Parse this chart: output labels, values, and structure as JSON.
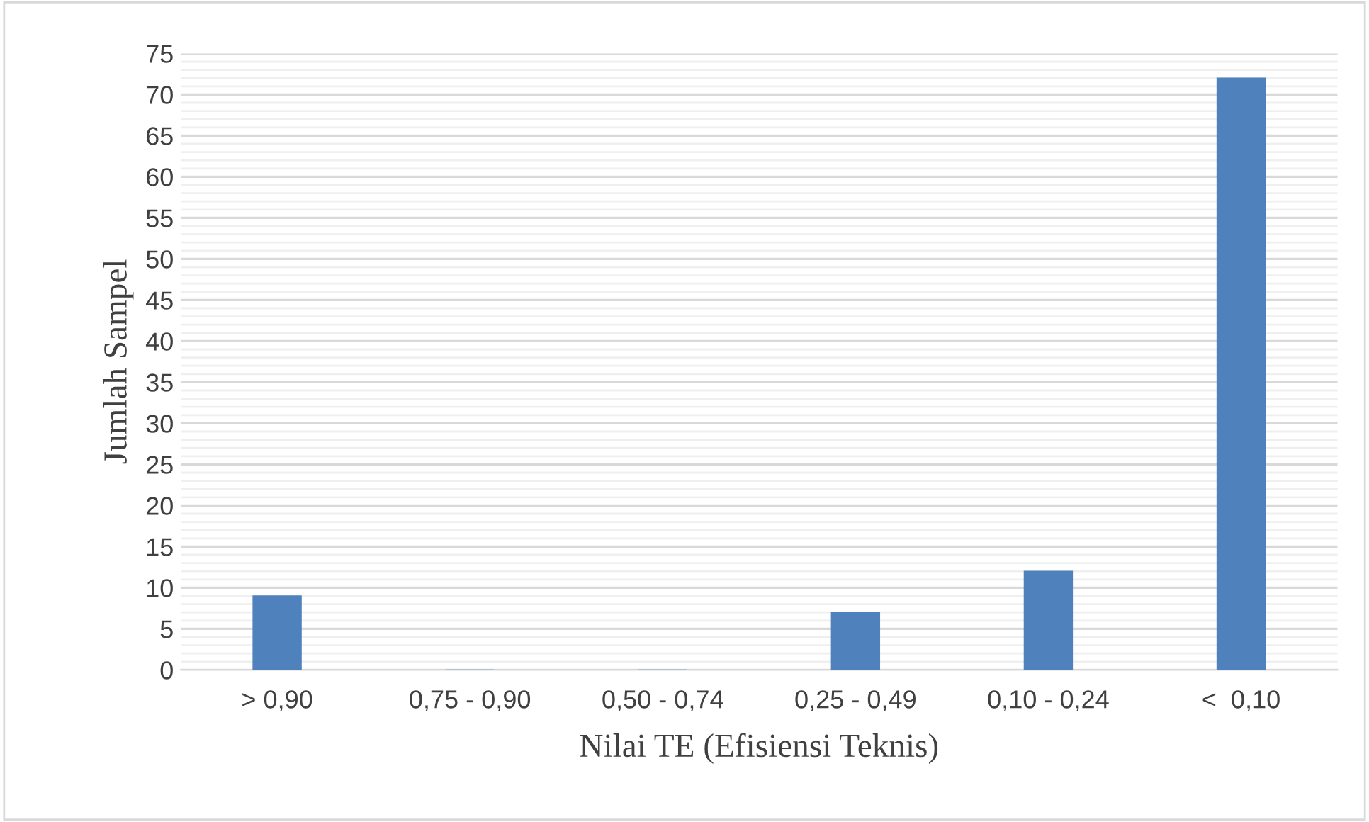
{
  "chart_data": {
    "type": "bar",
    "xlabel": "Nilai TE (Efisiensi Teknis)",
    "ylabel": "Jumlah Sampel",
    "categories": [
      "> 0,90",
      "0,75 - 0,90",
      "0,50 - 0,74",
      "0,25 - 0,49",
      "0,10 - 0,24",
      "<  0,10"
    ],
    "values": [
      9,
      0,
      0,
      7,
      12,
      72
    ],
    "color": "#4f81bd",
    "ylim": [
      0,
      75
    ],
    "yticks": [
      0,
      5,
      10,
      15,
      20,
      25,
      30,
      35,
      40,
      45,
      50,
      55,
      60,
      65,
      70,
      75
    ],
    "grid": "y"
  }
}
